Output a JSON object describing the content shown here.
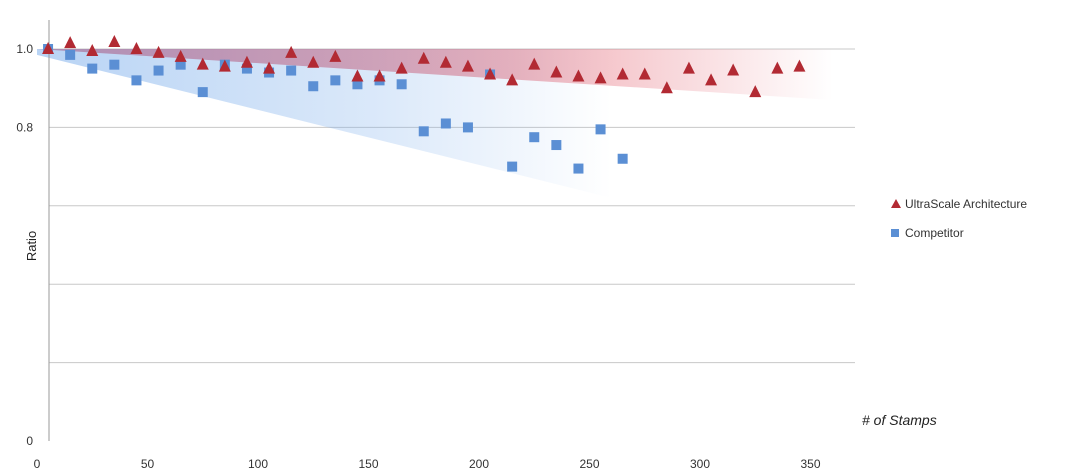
{
  "chart_data": {
    "type": "scatter",
    "ylabel": "Ratio",
    "x_annotation": "# of Stamps",
    "xlim": [
      0,
      375
    ],
    "ylim": [
      0,
      1.05
    ],
    "x_ticks": [
      0,
      50,
      100,
      150,
      200,
      250,
      300,
      350
    ],
    "y_ticks": [
      0,
      0.2,
      0.4,
      0.6,
      0.8,
      1.0
    ],
    "y_tick_labels": [
      "0",
      "",
      "",
      "",
      "0.8",
      "1.0"
    ],
    "grid": "horizontal",
    "legend_position": "right",
    "series": [
      {
        "name": "UltraScale Architecture",
        "marker": "triangle",
        "color": "#b22a33",
        "shade_color": "#e05060",
        "shade": {
          "x_start": 0,
          "x_end": 360,
          "y_upper": 1.0,
          "y_lower_start": 1.0,
          "y_lower_end": 0.87
        },
        "points": [
          [
            5,
            1.0
          ],
          [
            15,
            1.015
          ],
          [
            25,
            0.995
          ],
          [
            35,
            1.018
          ],
          [
            45,
            1.0
          ],
          [
            55,
            0.99
          ],
          [
            65,
            0.98
          ],
          [
            75,
            0.96
          ],
          [
            85,
            0.955
          ],
          [
            95,
            0.965
          ],
          [
            105,
            0.95
          ],
          [
            115,
            0.99
          ],
          [
            125,
            0.965
          ],
          [
            135,
            0.98
          ],
          [
            145,
            0.93
          ],
          [
            155,
            0.93
          ],
          [
            165,
            0.95
          ],
          [
            175,
            0.975
          ],
          [
            185,
            0.965
          ],
          [
            195,
            0.955
          ],
          [
            205,
            0.935
          ],
          [
            215,
            0.92
          ],
          [
            225,
            0.96
          ],
          [
            235,
            0.94
          ],
          [
            245,
            0.93
          ],
          [
            255,
            0.925
          ],
          [
            265,
            0.935
          ],
          [
            275,
            0.935
          ],
          [
            285,
            0.9
          ],
          [
            295,
            0.95
          ],
          [
            305,
            0.92
          ],
          [
            315,
            0.945
          ],
          [
            325,
            0.89
          ],
          [
            335,
            0.95
          ],
          [
            345,
            0.955
          ]
        ]
      },
      {
        "name": "Competitor",
        "marker": "square",
        "color": "#5b8fd4",
        "shade_color": "#7fb0ec",
        "shade": {
          "x_start": 0,
          "x_end": 260,
          "y_upper": 1.0,
          "y_lower_start": 0.985,
          "y_lower_end": 0.62
        },
        "points": [
          [
            5,
            1.0
          ],
          [
            15,
            0.985
          ],
          [
            25,
            0.95
          ],
          [
            35,
            0.96
          ],
          [
            45,
            0.92
          ],
          [
            55,
            0.945
          ],
          [
            65,
            0.96
          ],
          [
            75,
            0.89
          ],
          [
            85,
            0.96
          ],
          [
            95,
            0.95
          ],
          [
            105,
            0.94
          ],
          [
            115,
            0.945
          ],
          [
            125,
            0.905
          ],
          [
            135,
            0.92
          ],
          [
            145,
            0.91
          ],
          [
            155,
            0.92
          ],
          [
            165,
            0.91
          ],
          [
            175,
            0.79
          ],
          [
            185,
            0.81
          ],
          [
            195,
            0.8
          ],
          [
            205,
            0.935
          ],
          [
            215,
            0.7
          ],
          [
            225,
            0.775
          ],
          [
            235,
            0.755
          ],
          [
            245,
            0.695
          ],
          [
            255,
            0.795
          ],
          [
            265,
            0.72
          ]
        ]
      }
    ]
  }
}
